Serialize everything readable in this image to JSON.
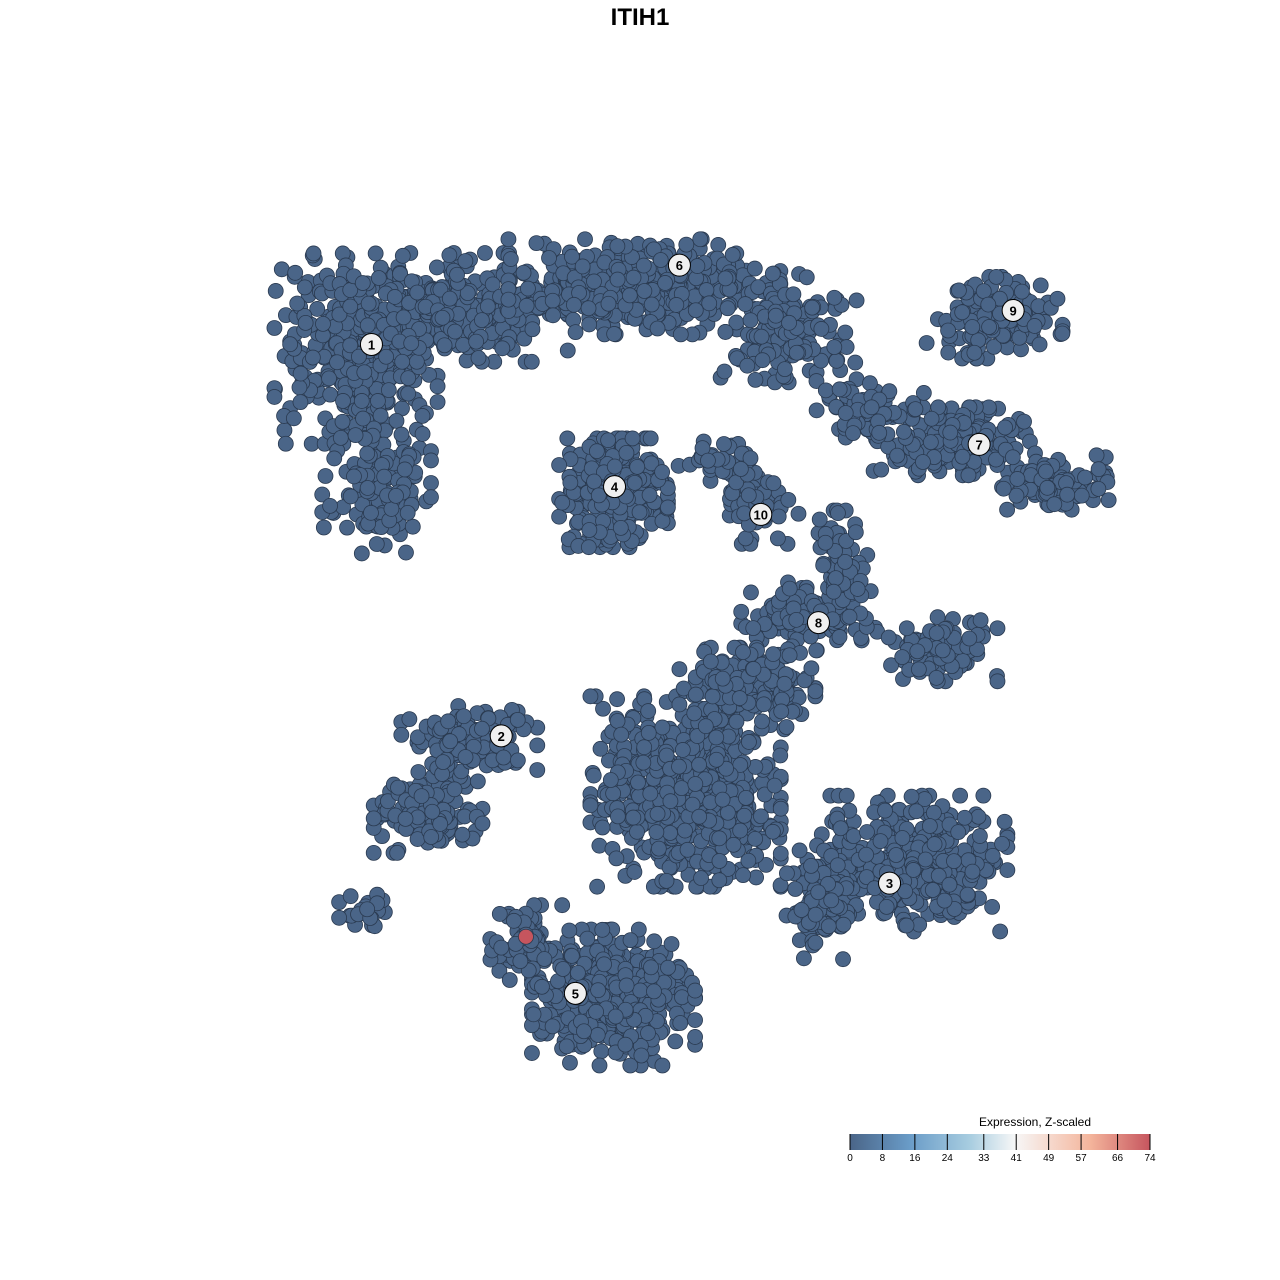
{
  "chart_data": {
    "type": "scatter",
    "title": "ITIH1",
    "xlabel": "",
    "ylabel": "",
    "grid": false,
    "point_color_low": "#4a6588",
    "point_stroke": "#2a3a50",
    "highlight_color": "#c6555e",
    "clusters": [
      {
        "label": "1",
        "x": -28.5,
        "y": 28.4,
        "components": [
          [
            -30,
            28,
            6,
            7,
            350
          ],
          [
            -20,
            32,
            8,
            4,
            300
          ],
          [
            -28,
            15,
            4,
            6,
            150
          ]
        ]
      },
      {
        "label": "6",
        "x": 1.4,
        "y": 36.1,
        "components": [
          [
            -2,
            34,
            10,
            3.5,
            400
          ],
          [
            12,
            30,
            5,
            4,
            150
          ]
        ]
      },
      {
        "label": "9",
        "x": 33.8,
        "y": 31.7,
        "components": [
          [
            32,
            31,
            5,
            3,
            150
          ]
        ]
      },
      {
        "label": "4",
        "x": -4.9,
        "y": 14.6,
        "components": [
          [
            -5,
            14,
            4,
            4,
            300
          ]
        ]
      },
      {
        "label": "7",
        "x": 30.5,
        "y": 18.7,
        "components": [
          [
            28,
            19,
            6,
            2.5,
            200
          ],
          [
            38,
            15,
            4,
            2,
            100
          ],
          [
            20,
            22,
            4,
            2,
            80
          ]
        ]
      },
      {
        "label": "10",
        "x": 9.3,
        "y": 11.9,
        "components": [
          [
            9,
            13,
            3,
            3,
            60
          ],
          [
            5,
            17,
            4,
            1.5,
            40
          ]
        ]
      },
      {
        "label": "8",
        "x": 14.9,
        "y": 1.4,
        "components": [
          [
            14,
            2,
            5,
            2.5,
            120
          ],
          [
            27,
            -1,
            4,
            2.5,
            100
          ],
          [
            17,
            7,
            2,
            4,
            60
          ]
        ]
      },
      {
        "label": "2",
        "x": -15.9,
        "y": -9.6,
        "components": [
          [
            -23,
            -17,
            4,
            3,
            150
          ],
          [
            -19,
            -10,
            5,
            2.5,
            120
          ],
          [
            -29,
            -27,
            2,
            1.5,
            25
          ],
          [
            2,
            -15,
            7,
            7,
            600
          ],
          [
            8,
            -5,
            5,
            3,
            200
          ]
        ]
      },
      {
        "label": "3",
        "x": 21.8,
        "y": -23.9,
        "components": [
          [
            24,
            -22,
            7,
            5,
            400
          ],
          [
            15,
            -26,
            3,
            4,
            100
          ]
        ]
      },
      {
        "label": "5",
        "x": -8.7,
        "y": -34.6,
        "components": [
          [
            -5,
            -35,
            6,
            5,
            450
          ],
          [
            -13,
            -30,
            3,
            3,
            80
          ]
        ]
      }
    ],
    "highlighted_points": [
      {
        "x": -13.5,
        "y": -29.1,
        "value": 74
      }
    ],
    "legend": {
      "title": "Expression, Z-scaled",
      "ticks": [
        "0",
        "8",
        "16",
        "24",
        "33",
        "41",
        "49",
        "57",
        "66",
        "74"
      ],
      "range": [
        0,
        74
      ],
      "colors": [
        "#4a6588",
        "#6a9cc8",
        "#a8cde0",
        "#f7f7f7",
        "#f4b59c",
        "#c6555e"
      ],
      "placement": "bottom-right"
    }
  }
}
